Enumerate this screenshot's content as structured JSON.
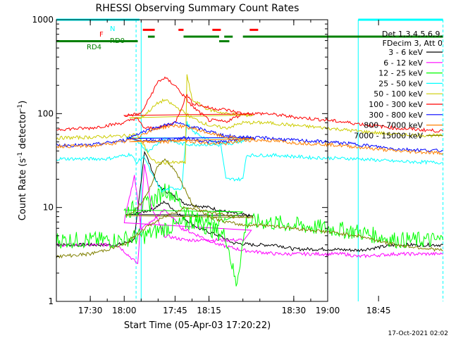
{
  "chart_data": {
    "type": "line",
    "title": "RHESSI Observing Summary Count Rates",
    "xlabel": "Start Time (05-Apr-03 17:20:22)",
    "ylabel": "Count Rate (s",
    "ylabel_sup": "-1",
    "ylabel_tail": " detector",
    "ylabel_end": ")",
    "yscale": "log",
    "ylim": [
      1,
      1000
    ],
    "xlim_minutes": [
      17.4,
      19.0
    ],
    "y_ticks": [
      {
        "v": 1,
        "label": "1"
      },
      {
        "v": 10,
        "label": "10"
      },
      {
        "v": 100,
        "label": "100"
      },
      {
        "v": 1000,
        "label": "1000"
      }
    ],
    "x_ticks": [
      {
        "t": 17.5,
        "label": "17:30"
      },
      {
        "t": 17.75,
        "label": "17:45"
      },
      {
        "t": 18.0,
        "label": "18:00"
      },
      {
        "t": 18.25,
        "label": "18:15"
      },
      {
        "t": 18.5,
        "label": "18:30"
      },
      {
        "t": 18.75,
        "label": "18:45"
      },
      {
        "t": 19.0,
        "label": "19:00"
      }
    ],
    "legend_header": [
      "Det 1,3,4,5,6,9,",
      "FDecim 3, Att 0"
    ],
    "legend_placement": "right",
    "timestamp": "17-Oct-2021 02:02",
    "flags": [
      {
        "label": "N",
        "color": "#00ffff",
        "y": 1000,
        "segments": [
          [
            17.4,
            17.645
          ],
          [
            18.69,
            18.94
          ]
        ]
      },
      {
        "label": "F",
        "color": "#ff0000",
        "y": 780,
        "segments": [
          [
            17.655,
            17.69
          ],
          [
            17.97,
            17.995
          ],
          [
            18.16,
            18.175
          ],
          [
            18.26,
            18.285
          ]
        ]
      },
      {
        "label": "RD0",
        "color": "#008000",
        "y": 660,
        "segments": [
          [
            17.67,
            17.69
          ],
          [
            17.775,
            18.28
          ],
          [
            18.295,
            18.32
          ],
          [
            18.35,
            18.94
          ]
        ]
      },
      {
        "label": "RD4",
        "color": "#008000",
        "y": 590,
        "segments": [
          [
            17.4,
            17.64
          ],
          [
            18.28,
            18.31
          ]
        ]
      }
    ],
    "vlines_solid": [
      17.4,
      17.65,
      18.69
    ],
    "vlines_dashed": [
      17.635,
      18.94
    ],
    "series": [
      {
        "name": "3 - 6 keV",
        "color": "#000000",
        "points": [
          [
            17.4,
            4
          ],
          [
            17.58,
            4
          ],
          [
            17.63,
            4.5
          ],
          [
            17.66,
            40
          ],
          [
            17.68,
            26
          ],
          [
            17.7,
            17
          ],
          [
            17.75,
            13
          ],
          [
            17.78,
            11
          ],
          [
            17.85,
            10
          ],
          [
            17.9,
            9
          ],
          [
            17.98,
            8
          ],
          [
            18.03,
            8.5
          ],
          [
            18.08,
            9.5
          ],
          [
            18.12,
            11.5
          ],
          [
            18.17,
            8
          ],
          [
            18.22,
            6
          ],
          [
            18.28,
            5
          ],
          [
            18.32,
            4.2
          ],
          [
            18.38,
            4
          ],
          [
            18.45,
            4
          ],
          [
            18.5,
            3.6
          ],
          [
            18.6,
            3.6
          ],
          [
            18.69,
            3.5
          ],
          [
            18.8,
            4
          ],
          [
            18.94,
            4
          ]
        ]
      },
      {
        "name": "6 - 12 keV",
        "color": "#ff00ff",
        "points": [
          [
            17.4,
            4
          ],
          [
            17.58,
            4
          ],
          [
            17.64,
            2.5
          ],
          [
            17.66,
            30
          ],
          [
            17.68,
            10
          ],
          [
            17.72,
            5
          ],
          [
            17.78,
            4.5
          ],
          [
            17.85,
            4.5
          ],
          [
            17.95,
            4.5
          ],
          [
            18.0,
            7
          ],
          [
            18.03,
            22
          ],
          [
            18.05,
            6
          ],
          [
            18.08,
            7
          ],
          [
            18.12,
            9.5
          ],
          [
            18.17,
            6
          ],
          [
            18.22,
            5
          ],
          [
            18.28,
            4
          ],
          [
            18.35,
            3.5
          ],
          [
            18.45,
            3.2
          ],
          [
            18.55,
            3.2
          ],
          [
            18.65,
            3.2
          ],
          [
            18.69,
            3
          ],
          [
            18.8,
            3.2
          ],
          [
            18.94,
            3.2
          ]
        ]
      },
      {
        "name": "12 - 25 keV",
        "color": "#00ff00",
        "points": [
          [
            17.4,
            4.5
          ],
          [
            17.58,
            4.5
          ],
          [
            17.66,
            5
          ],
          [
            17.72,
            6
          ],
          [
            17.8,
            7
          ],
          [
            17.9,
            8
          ],
          [
            18.0,
            9
          ],
          [
            18.06,
            10.5
          ],
          [
            18.1,
            13
          ],
          [
            18.12,
            16
          ],
          [
            18.15,
            13
          ],
          [
            18.2,
            8
          ],
          [
            18.25,
            6
          ],
          [
            18.3,
            5
          ],
          [
            18.33,
            1.5
          ],
          [
            18.36,
            7
          ],
          [
            18.42,
            7
          ],
          [
            18.5,
            6.5
          ],
          [
            18.6,
            6
          ],
          [
            18.69,
            5.5
          ],
          [
            18.8,
            4.5
          ],
          [
            18.94,
            4.5
          ]
        ]
      },
      {
        "name": "25 - 50 keV",
        "color": "#00ffff",
        "points": [
          [
            17.4,
            33
          ],
          [
            17.55,
            33
          ],
          [
            17.62,
            37
          ],
          [
            17.635,
            30
          ],
          [
            17.66,
            35
          ],
          [
            17.68,
            23
          ],
          [
            17.71,
            15
          ],
          [
            17.74,
            16
          ],
          [
            17.77,
            16
          ],
          [
            17.785,
            80
          ],
          [
            17.8,
            65
          ],
          [
            17.86,
            50
          ],
          [
            17.92,
            48
          ],
          [
            17.98,
            55
          ],
          [
            18.03,
            52
          ],
          [
            18.07,
            40
          ],
          [
            18.12,
            55
          ],
          [
            18.16,
            48
          ],
          [
            18.2,
            47
          ],
          [
            18.25,
            47
          ],
          [
            18.285,
            46
          ],
          [
            18.3,
            20
          ],
          [
            18.35,
            20
          ],
          [
            18.36,
            36
          ],
          [
            18.45,
            36
          ],
          [
            18.55,
            34
          ],
          [
            18.69,
            33
          ],
          [
            18.8,
            31
          ],
          [
            18.94,
            30
          ]
        ]
      },
      {
        "name": "50 - 100 keV",
        "color": "#cccc00",
        "points": [
          [
            17.4,
            55
          ],
          [
            17.5,
            56
          ],
          [
            17.6,
            58
          ],
          [
            17.635,
            60
          ],
          [
            17.66,
            45
          ],
          [
            17.68,
            32
          ],
          [
            17.7,
            30
          ],
          [
            17.75,
            30
          ],
          [
            17.78,
            30
          ],
          [
            17.785,
            260
          ],
          [
            17.8,
            140
          ],
          [
            17.85,
            110
          ],
          [
            17.9,
            100
          ],
          [
            17.98,
            95
          ],
          [
            18.05,
            90
          ],
          [
            18.1,
            130
          ],
          [
            18.12,
            140
          ],
          [
            18.15,
            120
          ],
          [
            18.2,
            90
          ],
          [
            18.25,
            75
          ],
          [
            18.3,
            70
          ],
          [
            18.35,
            80
          ],
          [
            18.42,
            80
          ],
          [
            18.5,
            75
          ],
          [
            18.6,
            70
          ],
          [
            18.69,
            65
          ],
          [
            18.8,
            60
          ],
          [
            18.94,
            58
          ]
        ]
      },
      {
        "name": "100 - 300 keV",
        "color": "#ff0000",
        "points": [
          [
            17.4,
            68
          ],
          [
            17.5,
            70
          ],
          [
            17.6,
            80
          ],
          [
            17.635,
            90
          ],
          [
            17.66,
            70
          ],
          [
            17.7,
            70
          ],
          [
            17.75,
            80
          ],
          [
            17.785,
            160
          ],
          [
            17.8,
            130
          ],
          [
            17.85,
            115
          ],
          [
            17.9,
            110
          ],
          [
            17.95,
            100
          ],
          [
            18.0,
            95
          ],
          [
            18.05,
            100
          ],
          [
            18.1,
            220
          ],
          [
            18.12,
            240
          ],
          [
            18.15,
            200
          ],
          [
            18.2,
            120
          ],
          [
            18.25,
            85
          ],
          [
            18.3,
            82
          ],
          [
            18.35,
            100
          ],
          [
            18.42,
            100
          ],
          [
            18.5,
            92
          ],
          [
            18.6,
            85
          ],
          [
            18.69,
            78
          ],
          [
            18.8,
            70
          ],
          [
            18.94,
            65
          ]
        ]
      },
      {
        "name": "300 - 800 keV",
        "color": "#0000ff",
        "points": [
          [
            17.4,
            46
          ],
          [
            17.5,
            46
          ],
          [
            17.6,
            52
          ],
          [
            17.635,
            60
          ],
          [
            17.66,
            65
          ],
          [
            17.7,
            72
          ],
          [
            17.75,
            80
          ],
          [
            17.8,
            72
          ],
          [
            17.85,
            65
          ],
          [
            17.9,
            58
          ],
          [
            17.98,
            55
          ],
          [
            18.05,
            52
          ],
          [
            18.12,
            52
          ],
          [
            18.18,
            55
          ],
          [
            18.25,
            50
          ],
          [
            18.3,
            50
          ],
          [
            18.35,
            55
          ],
          [
            18.42,
            55
          ],
          [
            18.5,
            52
          ],
          [
            18.6,
            50
          ],
          [
            18.69,
            47
          ],
          [
            18.8,
            42
          ],
          [
            18.94,
            40
          ]
        ]
      },
      {
        "name": "800 - 7000 keV",
        "color": "#ff8000",
        "points": [
          [
            17.4,
            45
          ],
          [
            17.5,
            45
          ],
          [
            17.6,
            50
          ],
          [
            17.635,
            55
          ],
          [
            17.66,
            62
          ],
          [
            17.7,
            70
          ],
          [
            17.75,
            75
          ],
          [
            17.8,
            70
          ],
          [
            17.85,
            62
          ],
          [
            17.9,
            56
          ],
          [
            17.98,
            53
          ],
          [
            18.05,
            50
          ],
          [
            18.12,
            50
          ],
          [
            18.18,
            52
          ],
          [
            18.25,
            48
          ],
          [
            18.3,
            48
          ],
          [
            18.35,
            52
          ],
          [
            18.42,
            52
          ],
          [
            18.5,
            49
          ],
          [
            18.6,
            47
          ],
          [
            18.69,
            44
          ],
          [
            18.8,
            40
          ],
          [
            18.94,
            38
          ]
        ]
      },
      {
        "name": "7000 - 15000 keV",
        "color": "#808000",
        "points": [
          [
            17.4,
            3
          ],
          [
            17.5,
            3.2
          ],
          [
            17.6,
            4
          ],
          [
            17.66,
            6
          ],
          [
            17.72,
            8
          ],
          [
            17.78,
            10
          ],
          [
            17.85,
            9
          ],
          [
            17.92,
            8
          ],
          [
            17.98,
            8
          ],
          [
            18.03,
            9
          ],
          [
            18.07,
            14
          ],
          [
            18.1,
            28
          ],
          [
            18.12,
            33
          ],
          [
            18.15,
            25
          ],
          [
            18.2,
            11
          ],
          [
            18.25,
            8
          ],
          [
            18.3,
            7
          ],
          [
            18.35,
            6.5
          ],
          [
            18.42,
            6.5
          ],
          [
            18.5,
            6
          ],
          [
            18.6,
            5.5
          ],
          [
            18.69,
            5
          ],
          [
            18.8,
            4
          ],
          [
            18.94,
            3.5
          ]
        ]
      }
    ]
  }
}
